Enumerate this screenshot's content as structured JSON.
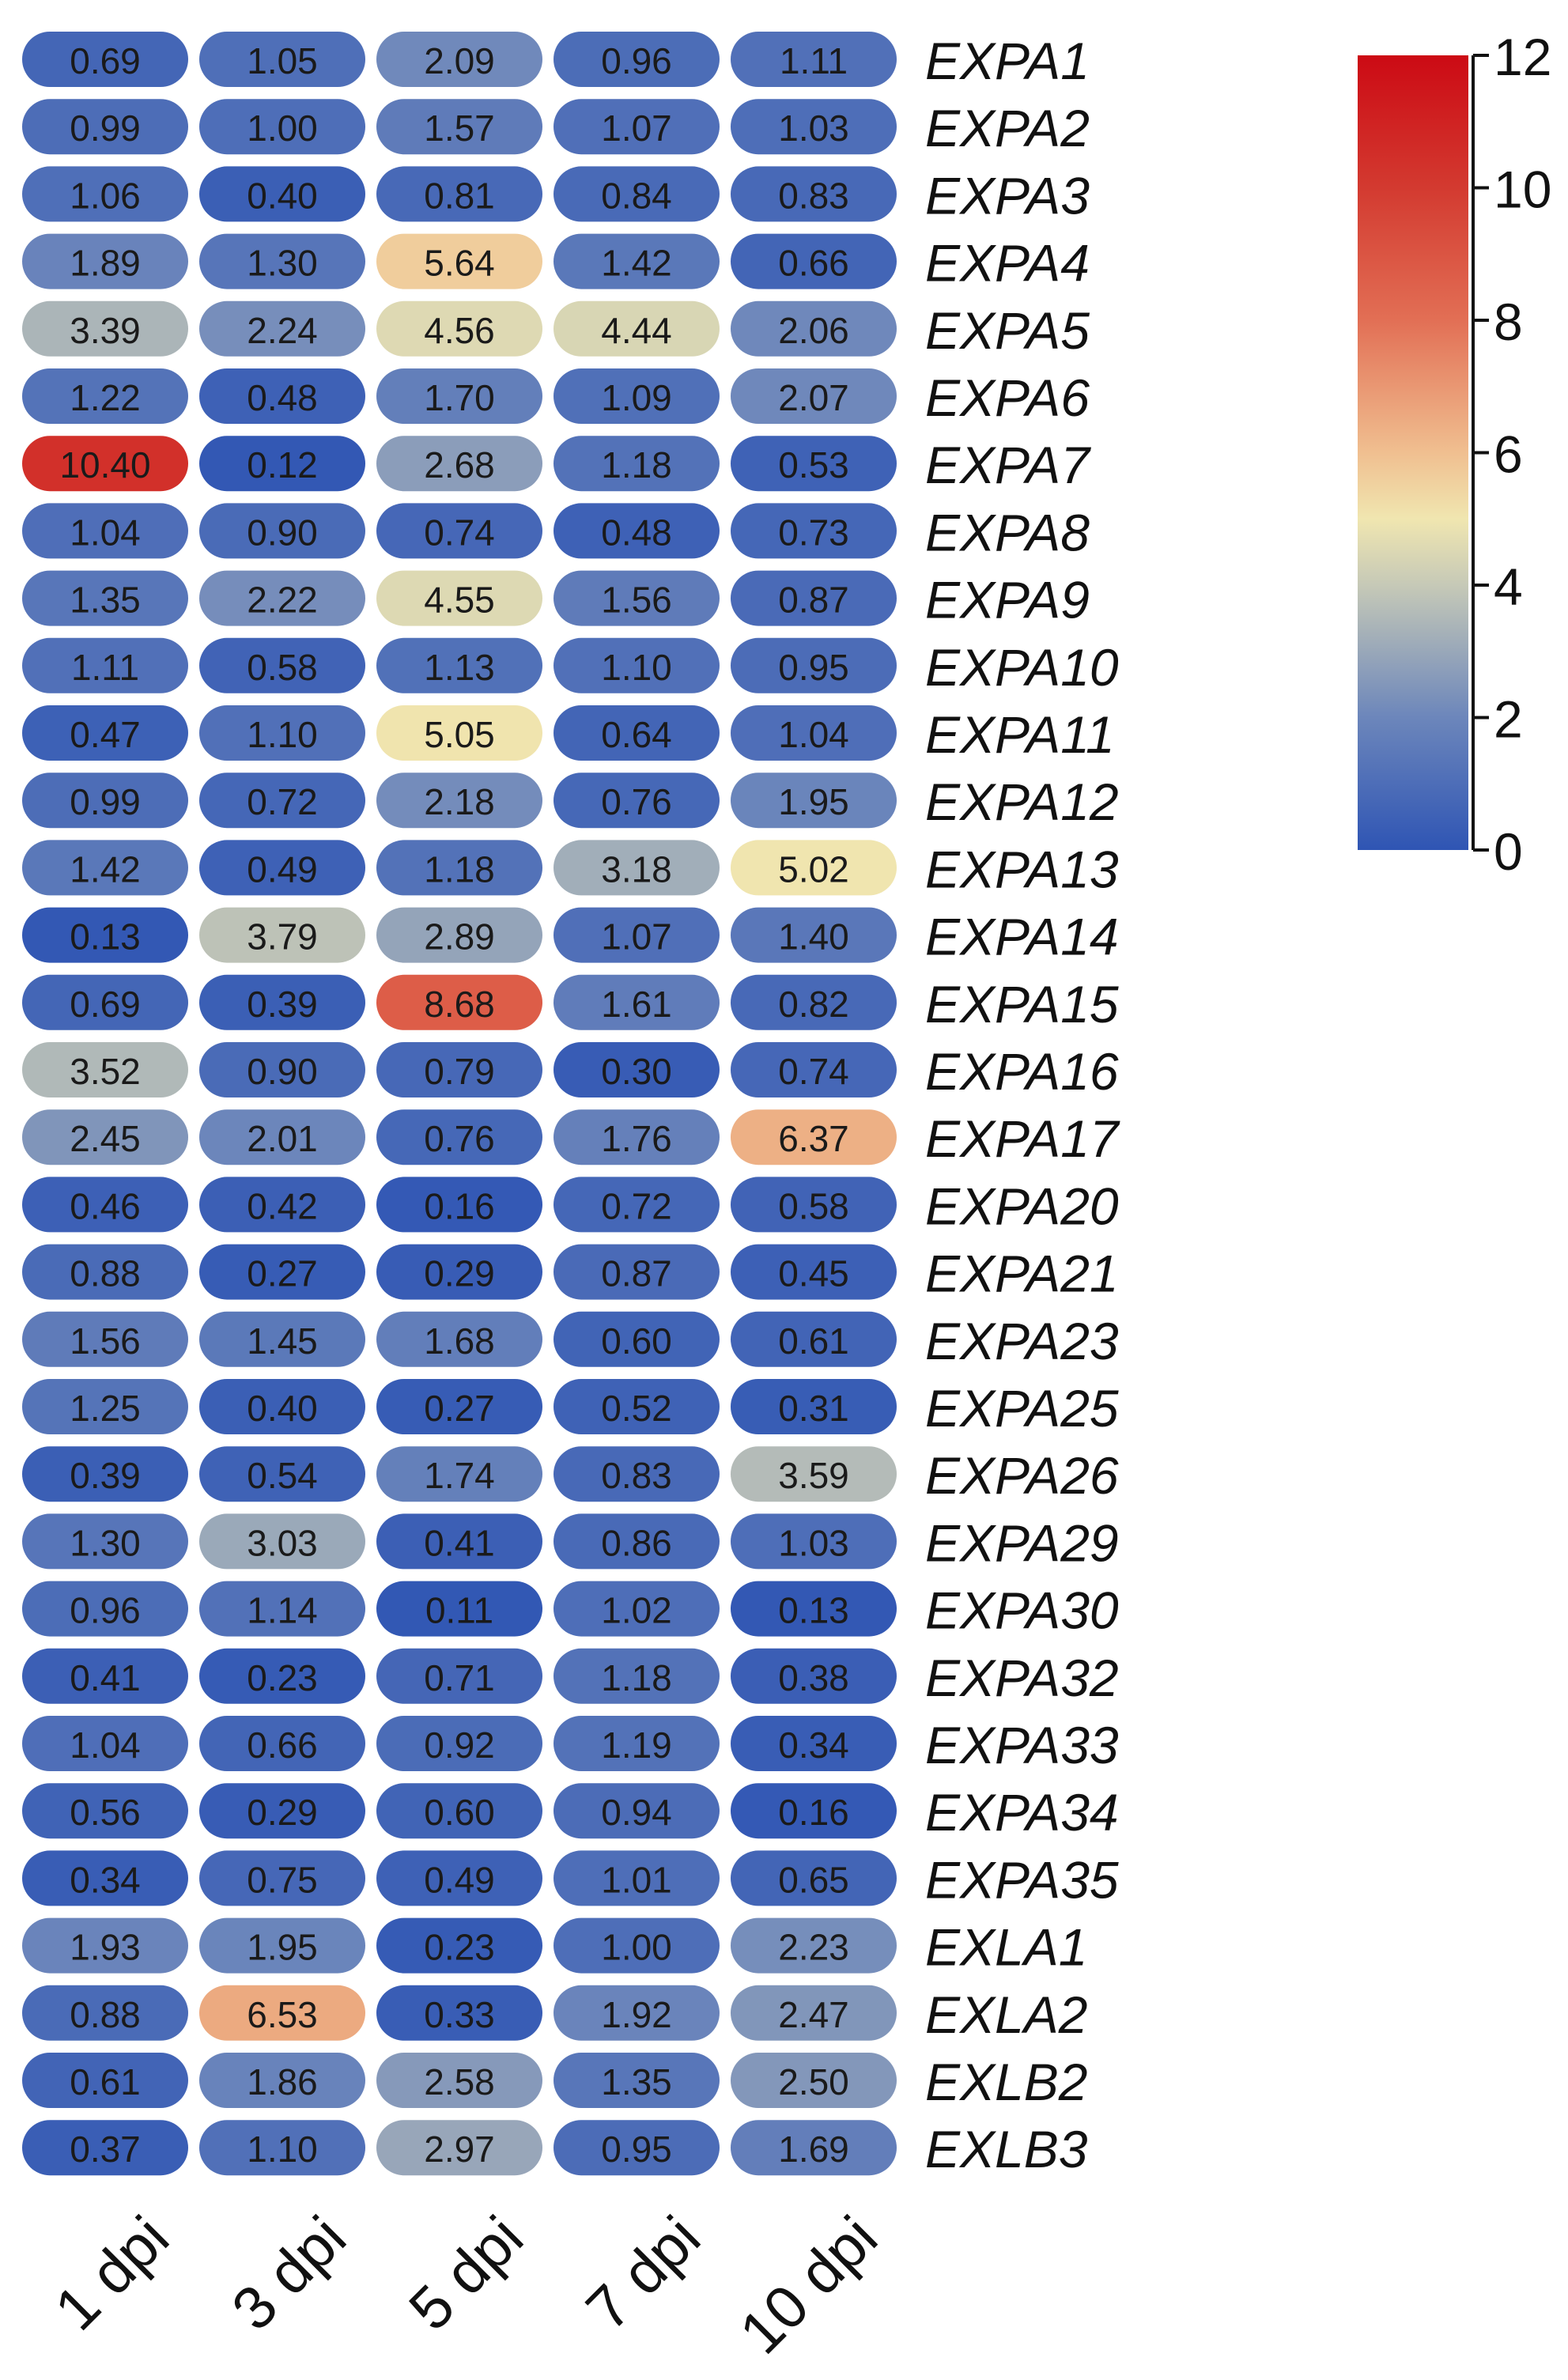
{
  "chart_data": {
    "type": "heatmap",
    "title": "",
    "xlabel": "",
    "ylabel": "",
    "columns": [
      "1 dpi",
      "3 dpi",
      "5 dpi",
      "7 dpi",
      "10 dpi"
    ],
    "rows": [
      "EXPA1",
      "EXPA2",
      "EXPA3",
      "EXPA4",
      "EXPA5",
      "EXPA6",
      "EXPA7",
      "EXPA8",
      "EXPA9",
      "EXPA10",
      "EXPA11",
      "EXPA12",
      "EXPA13",
      "EXPA14",
      "EXPA15",
      "EXPA16",
      "EXPA17",
      "EXPA20",
      "EXPA21",
      "EXPA23",
      "EXPA25",
      "EXPA26",
      "EXPA29",
      "EXPA30",
      "EXPA32",
      "EXPA33",
      "EXPA34",
      "EXPA35",
      "EXLA1",
      "EXLA2",
      "EXLB2",
      "EXLB3"
    ],
    "values": [
      [
        "0.69",
        "1.05",
        "2.09",
        "0.96",
        "1.11"
      ],
      [
        "0.99",
        "1.00",
        "1.57",
        "1.07",
        "1.03"
      ],
      [
        "1.06",
        "0.40",
        "0.81",
        "0.84",
        "0.83"
      ],
      [
        "1.89",
        "1.30",
        "5.64",
        "1.42",
        "0.66"
      ],
      [
        "3.39",
        "2.24",
        "4.56",
        "4.44",
        "2.06"
      ],
      [
        "1.22",
        "0.48",
        "1.70",
        "1.09",
        "2.07"
      ],
      [
        "10.40",
        "0.12",
        "2.68",
        "1.18",
        "0.53"
      ],
      [
        "1.04",
        "0.90",
        "0.74",
        "0.48",
        "0.73"
      ],
      [
        "1.35",
        "2.22",
        "4.55",
        "1.56",
        "0.87"
      ],
      [
        "1.11",
        "0.58",
        "1.13",
        "1.10",
        "0.95"
      ],
      [
        "0.47",
        "1.10",
        "5.05",
        "0.64",
        "1.04"
      ],
      [
        "0.99",
        "0.72",
        "2.18",
        "0.76",
        "1.95"
      ],
      [
        "1.42",
        "0.49",
        "1.18",
        "3.18",
        "5.02"
      ],
      [
        "0.13",
        "3.79",
        "2.89",
        "1.07",
        "1.40"
      ],
      [
        "0.69",
        "0.39",
        "8.68",
        "1.61",
        "0.82"
      ],
      [
        "3.52",
        "0.90",
        "0.79",
        "0.30",
        "0.74"
      ],
      [
        "2.45",
        "2.01",
        "0.76",
        "1.76",
        "6.37"
      ],
      [
        "0.46",
        "0.42",
        "0.16",
        "0.72",
        "0.58"
      ],
      [
        "0.88",
        "0.27",
        "0.29",
        "0.87",
        "0.45"
      ],
      [
        "1.56",
        "1.45",
        "1.68",
        "0.60",
        "0.61"
      ],
      [
        "1.25",
        "0.40",
        "0.27",
        "0.52",
        "0.31"
      ],
      [
        "0.39",
        "0.54",
        "1.74",
        "0.83",
        "3.59"
      ],
      [
        "1.30",
        "3.03",
        "0.41",
        "0.86",
        "1.03"
      ],
      [
        "0.96",
        "1.14",
        "0.11",
        "1.02",
        "0.13"
      ],
      [
        "0.41",
        "0.23",
        "0.71",
        "1.18",
        "0.38"
      ],
      [
        "1.04",
        "0.66",
        "0.92",
        "1.19",
        "0.34"
      ],
      [
        "0.56",
        "0.29",
        "0.60",
        "0.94",
        "0.16"
      ],
      [
        "0.34",
        "0.75",
        "0.49",
        "1.01",
        "0.65"
      ],
      [
        "1.93",
        "1.95",
        "0.23",
        "1.00",
        "2.23"
      ],
      [
        "0.88",
        "6.53",
        "0.33",
        "1.92",
        "2.47"
      ],
      [
        "0.61",
        "1.86",
        "2.58",
        "1.35",
        "2.50"
      ],
      [
        "0.37",
        "1.10",
        "2.97",
        "0.95",
        "1.69"
      ]
    ],
    "color_scale": {
      "min": 0,
      "max": 12,
      "ticks": [
        "0",
        "2",
        "4",
        "6",
        "8",
        "10",
        "12"
      ],
      "stops": [
        {
          "value": 0,
          "color": "#2f55b4"
        },
        {
          "value": 2,
          "color": "#6c86bb"
        },
        {
          "value": 4,
          "color": "#c6c9b7"
        },
        {
          "value": 5,
          "color": "#f0e6b0"
        },
        {
          "value": 6,
          "color": "#f0bf90"
        },
        {
          "value": 8,
          "color": "#e26f55"
        },
        {
          "value": 10,
          "color": "#d33a30"
        },
        {
          "value": 12,
          "color": "#cc0a14"
        }
      ]
    },
    "legend_placement": "right"
  }
}
